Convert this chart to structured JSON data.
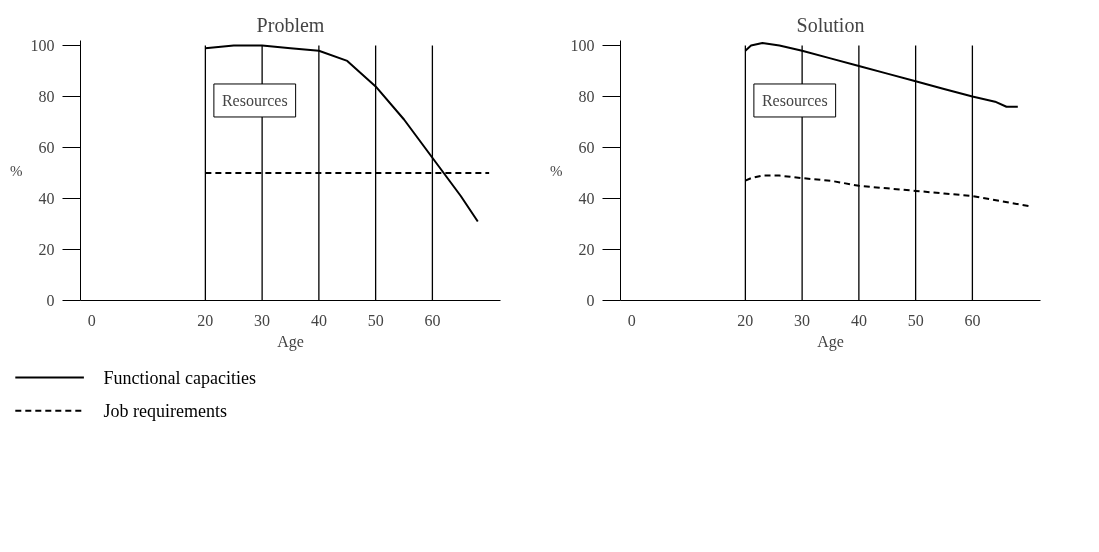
{
  "chart_data": [
    {
      "type": "line",
      "title": "Problem",
      "xlabel": "Age",
      "ylabel": "%",
      "xlim": [
        -2,
        72
      ],
      "xticks": [
        0,
        20,
        30,
        40,
        50,
        60
      ],
      "ylim": [
        0,
        102
      ],
      "yticks": [
        0,
        20,
        40,
        60,
        80,
        100
      ],
      "legend": "bottom",
      "line_style": "solid",
      "ref_lines": [
        {
          "axis": "x",
          "value": 20
        },
        {
          "axis": "x",
          "value": 30
        },
        {
          "axis": "x",
          "value": 40
        },
        {
          "axis": "x",
          "value": 50
        },
        {
          "axis": "x",
          "value": 60
        }
      ],
      "annotations": [
        "Resources"
      ],
      "series": [
        {
          "name": "Functional capacities",
          "color": "#000000",
          "x": [
            20,
            25,
            30,
            35,
            40,
            45,
            50,
            55,
            60,
            65,
            68
          ],
          "values": [
            99,
            100,
            100,
            99,
            98,
            94,
            84,
            71,
            56,
            41,
            31
          ]
        },
        {
          "name": "Job requirements",
          "color": "#000000",
          "line_style": "dashed",
          "x": [
            20,
            70
          ],
          "values": [
            50,
            50
          ]
        }
      ]
    },
    {
      "type": "line",
      "title": "Solution",
      "xlabel": "Age",
      "ylabel": "%",
      "xlim": [
        -2,
        72
      ],
      "xticks": [
        0,
        20,
        30,
        40,
        50,
        60
      ],
      "ylim": [
        0,
        102
      ],
      "yticks": [
        0,
        20,
        40,
        60,
        80,
        100
      ],
      "line_style": "solid",
      "ref_lines": [
        {
          "axis": "x",
          "value": 20
        },
        {
          "axis": "x",
          "value": 30
        },
        {
          "axis": "x",
          "value": 40
        },
        {
          "axis": "x",
          "value": 50
        },
        {
          "axis": "x",
          "value": 60
        }
      ],
      "annotations": [
        "Resources"
      ],
      "series": [
        {
          "color": "#000000",
          "x": [
            20,
            21,
            23,
            26,
            30,
            35,
            40,
            45,
            50,
            55,
            60,
            64,
            66,
            68
          ],
          "values": [
            98,
            100,
            101,
            100,
            98,
            95,
            92,
            89,
            86,
            83,
            80,
            78,
            76,
            76
          ]
        },
        {
          "color": "#000000",
          "line_style": "dashed",
          "x": [
            20,
            21,
            23,
            26,
            30,
            35,
            40,
            45,
            50,
            55,
            60,
            65,
            70
          ],
          "values": [
            47,
            48,
            49,
            49,
            48,
            47,
            45,
            44,
            43,
            42,
            41,
            39,
            37
          ]
        }
      ]
    }
  ]
}
